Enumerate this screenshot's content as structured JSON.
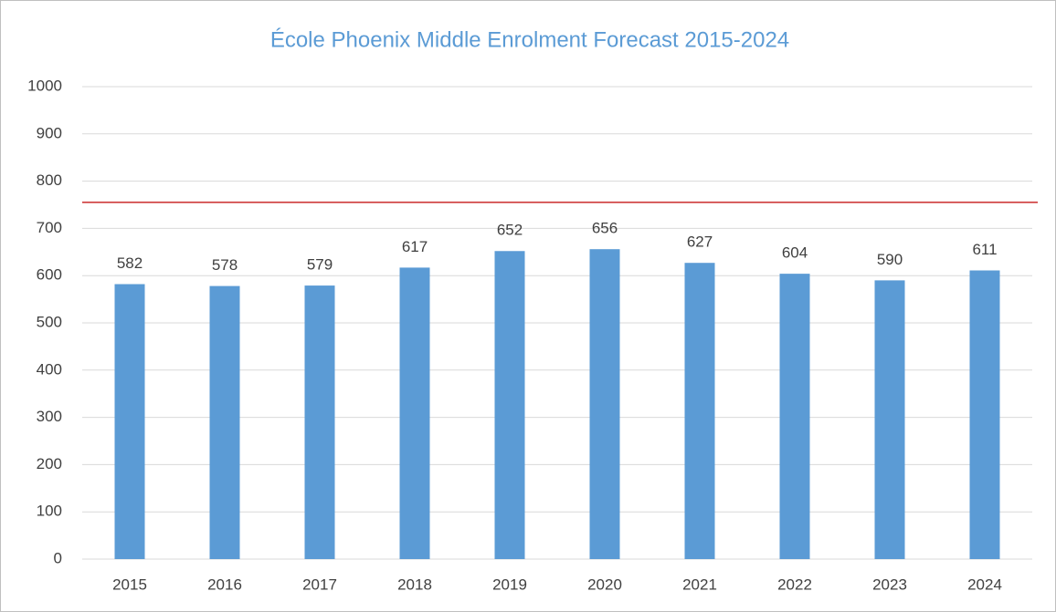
{
  "chart_data": {
    "type": "bar",
    "title": "École Phoenix Middle Enrolment Forecast 2015-2024",
    "categories": [
      "2015",
      "2016",
      "2017",
      "2018",
      "2019",
      "2020",
      "2021",
      "2022",
      "2023",
      "2024"
    ],
    "values": [
      582,
      578,
      579,
      617,
      652,
      656,
      627,
      604,
      590,
      611
    ],
    "color": "#5b9bd5",
    "ylim": [
      0,
      1000
    ],
    "yticks": [
      0,
      100,
      200,
      300,
      400,
      500,
      600,
      700,
      800,
      900,
      1000
    ],
    "grid": true,
    "reference_line": {
      "value": 755,
      "color": "#c00000"
    }
  }
}
